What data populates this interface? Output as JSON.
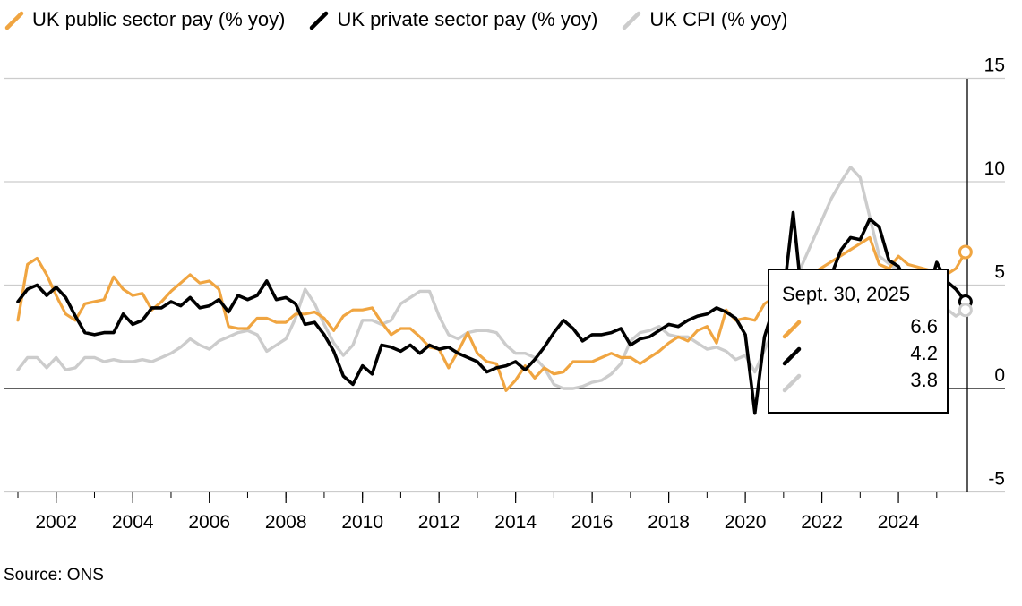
{
  "chart_data": {
    "type": "line",
    "title": "",
    "xlabel": "",
    "ylabel": "",
    "source": "Source: ONS",
    "x_ticks": [
      "2002",
      "2004",
      "2006",
      "2008",
      "2010",
      "2012",
      "2014",
      "2016",
      "2018",
      "2020",
      "2022",
      "2024"
    ],
    "y_ticks": [
      "15",
      "10",
      "5",
      "0",
      "-5"
    ],
    "xlim": [
      2001.0,
      2025.8
    ],
    "ylim": [
      -5,
      15
    ],
    "legend_position": "top",
    "grid": true,
    "series": [
      {
        "name": "UK public sector pay (% yoy)",
        "color": "#f0a541",
        "values": [
          [
            2001.0,
            3.3
          ],
          [
            2001.25,
            6.0
          ],
          [
            2001.5,
            6.3
          ],
          [
            2001.75,
            5.5
          ],
          [
            2002.0,
            4.5
          ],
          [
            2002.25,
            3.6
          ],
          [
            2002.5,
            3.3
          ],
          [
            2002.75,
            4.1
          ],
          [
            2003.0,
            4.2
          ],
          [
            2003.25,
            4.3
          ],
          [
            2003.5,
            5.4
          ],
          [
            2003.75,
            4.8
          ],
          [
            2004.0,
            4.5
          ],
          [
            2004.25,
            4.6
          ],
          [
            2004.5,
            3.8
          ],
          [
            2004.75,
            4.2
          ],
          [
            2005.0,
            4.7
          ],
          [
            2005.25,
            5.1
          ],
          [
            2005.5,
            5.5
          ],
          [
            2005.75,
            5.1
          ],
          [
            2006.0,
            5.2
          ],
          [
            2006.25,
            4.8
          ],
          [
            2006.5,
            3.0
          ],
          [
            2006.75,
            2.9
          ],
          [
            2007.0,
            2.9
          ],
          [
            2007.25,
            3.4
          ],
          [
            2007.5,
            3.4
          ],
          [
            2007.75,
            3.2
          ],
          [
            2008.0,
            3.2
          ],
          [
            2008.25,
            3.6
          ],
          [
            2008.5,
            3.6
          ],
          [
            2008.75,
            3.7
          ],
          [
            2009.0,
            3.4
          ],
          [
            2009.25,
            2.8
          ],
          [
            2009.5,
            3.5
          ],
          [
            2009.75,
            3.8
          ],
          [
            2010.0,
            3.8
          ],
          [
            2010.25,
            3.9
          ],
          [
            2010.5,
            3.2
          ],
          [
            2010.75,
            2.6
          ],
          [
            2011.0,
            2.9
          ],
          [
            2011.25,
            2.9
          ],
          [
            2011.5,
            2.5
          ],
          [
            2011.75,
            2.0
          ],
          [
            2012.0,
            1.9
          ],
          [
            2012.25,
            1.0
          ],
          [
            2012.5,
            1.8
          ],
          [
            2012.75,
            2.7
          ],
          [
            2013.0,
            1.7
          ],
          [
            2013.25,
            1.3
          ],
          [
            2013.5,
            1.2
          ],
          [
            2013.75,
            -0.1
          ],
          [
            2014.0,
            0.4
          ],
          [
            2014.25,
            1.1
          ],
          [
            2014.5,
            0.5
          ],
          [
            2014.75,
            1.0
          ],
          [
            2015.0,
            0.7
          ],
          [
            2015.25,
            0.8
          ],
          [
            2015.5,
            1.3
          ],
          [
            2015.75,
            1.3
          ],
          [
            2016.0,
            1.3
          ],
          [
            2016.25,
            1.5
          ],
          [
            2016.5,
            1.7
          ],
          [
            2016.75,
            1.5
          ],
          [
            2017.0,
            1.5
          ],
          [
            2017.25,
            1.2
          ],
          [
            2017.5,
            1.5
          ],
          [
            2017.75,
            1.8
          ],
          [
            2018.0,
            2.2
          ],
          [
            2018.25,
            2.5
          ],
          [
            2018.5,
            2.3
          ],
          [
            2018.75,
            2.8
          ],
          [
            2019.0,
            3.0
          ],
          [
            2019.25,
            2.2
          ],
          [
            2019.5,
            3.8
          ],
          [
            2019.75,
            3.3
          ],
          [
            2020.0,
            3.4
          ],
          [
            2020.25,
            3.3
          ],
          [
            2020.5,
            4.1
          ],
          [
            2023.25,
            7.3
          ],
          [
            2023.5,
            6.0
          ],
          [
            2023.75,
            5.8
          ],
          [
            2024.0,
            6.4
          ],
          [
            2024.25,
            6.0
          ],
          [
            2025.25,
            5.5
          ],
          [
            2025.5,
            5.8
          ],
          [
            2025.75,
            6.6
          ]
        ]
      },
      {
        "name": "UK private sector pay (% yoy)",
        "color": "#000000",
        "values": [
          [
            2001.0,
            4.2
          ],
          [
            2001.25,
            4.8
          ],
          [
            2001.5,
            5.0
          ],
          [
            2001.75,
            4.5
          ],
          [
            2002.0,
            4.9
          ],
          [
            2002.25,
            4.4
          ],
          [
            2002.5,
            3.5
          ],
          [
            2002.75,
            2.7
          ],
          [
            2003.0,
            2.6
          ],
          [
            2003.25,
            2.7
          ],
          [
            2003.5,
            2.7
          ],
          [
            2003.75,
            3.6
          ],
          [
            2004.0,
            3.1
          ],
          [
            2004.25,
            3.3
          ],
          [
            2004.5,
            3.9
          ],
          [
            2004.75,
            3.9
          ],
          [
            2005.0,
            4.2
          ],
          [
            2005.25,
            4.0
          ],
          [
            2005.5,
            4.4
          ],
          [
            2005.75,
            3.9
          ],
          [
            2006.0,
            4.0
          ],
          [
            2006.25,
            4.3
          ],
          [
            2006.5,
            3.7
          ],
          [
            2006.75,
            4.5
          ],
          [
            2007.0,
            4.3
          ],
          [
            2007.25,
            4.5
          ],
          [
            2007.5,
            5.2
          ],
          [
            2007.75,
            4.3
          ],
          [
            2008.0,
            4.4
          ],
          [
            2008.25,
            4.1
          ],
          [
            2008.5,
            3.1
          ],
          [
            2008.75,
            3.2
          ],
          [
            2009.0,
            2.6
          ],
          [
            2009.25,
            1.8
          ],
          [
            2009.5,
            0.6
          ],
          [
            2009.75,
            0.2
          ],
          [
            2010.0,
            1.1
          ],
          [
            2010.25,
            0.7
          ],
          [
            2010.5,
            2.1
          ],
          [
            2010.75,
            2.0
          ],
          [
            2011.0,
            1.8
          ],
          [
            2011.25,
            2.1
          ],
          [
            2011.5,
            1.7
          ],
          [
            2011.75,
            2.1
          ],
          [
            2012.0,
            1.9
          ],
          [
            2012.25,
            2.0
          ],
          [
            2012.5,
            1.7
          ],
          [
            2012.75,
            1.5
          ],
          [
            2013.0,
            1.3
          ],
          [
            2013.25,
            0.8
          ],
          [
            2013.5,
            1.0
          ],
          [
            2013.75,
            1.1
          ],
          [
            2014.0,
            1.3
          ],
          [
            2014.25,
            0.9
          ],
          [
            2014.5,
            1.4
          ],
          [
            2014.75,
            2.0
          ],
          [
            2015.0,
            2.7
          ],
          [
            2015.25,
            3.3
          ],
          [
            2015.5,
            2.9
          ],
          [
            2015.75,
            2.3
          ],
          [
            2016.0,
            2.6
          ],
          [
            2016.25,
            2.6
          ],
          [
            2016.5,
            2.7
          ],
          [
            2016.75,
            2.9
          ],
          [
            2017.0,
            2.1
          ],
          [
            2017.25,
            2.4
          ],
          [
            2017.5,
            2.5
          ],
          [
            2017.75,
            2.8
          ],
          [
            2018.0,
            3.1
          ],
          [
            2018.25,
            3.0
          ],
          [
            2018.5,
            3.3
          ],
          [
            2018.75,
            3.5
          ],
          [
            2019.0,
            3.6
          ],
          [
            2019.25,
            3.9
          ],
          [
            2019.5,
            3.7
          ],
          [
            2019.75,
            3.4
          ],
          [
            2020.0,
            2.6
          ],
          [
            2020.25,
            -1.2
          ],
          [
            2020.5,
            2.5
          ],
          [
            2020.75,
            4.0
          ],
          [
            2021.0,
            4.5
          ],
          [
            2021.25,
            8.5
          ],
          [
            2021.5,
            4.0
          ],
          [
            2021.75,
            5.0
          ],
          [
            2022.0,
            4.8
          ],
          [
            2022.25,
            5.5
          ],
          [
            2022.5,
            6.7
          ],
          [
            2022.75,
            7.3
          ],
          [
            2023.0,
            7.2
          ],
          [
            2023.25,
            8.2
          ],
          [
            2023.5,
            7.8
          ],
          [
            2023.75,
            6.2
          ],
          [
            2024.0,
            5.9
          ],
          [
            2024.25,
            5.0
          ],
          [
            2024.5,
            5.0
          ],
          [
            2024.75,
            4.5
          ],
          [
            2025.0,
            6.1
          ],
          [
            2025.25,
            5.2
          ],
          [
            2025.5,
            4.8
          ],
          [
            2025.75,
            4.2
          ]
        ]
      },
      {
        "name": "UK CPI (% yoy)",
        "color": "#cccccc",
        "values": [
          [
            2001.0,
            0.9
          ],
          [
            2001.25,
            1.5
          ],
          [
            2001.5,
            1.5
          ],
          [
            2001.75,
            1.0
          ],
          [
            2002.0,
            1.5
          ],
          [
            2002.25,
            0.9
          ],
          [
            2002.5,
            1.0
          ],
          [
            2002.75,
            1.5
          ],
          [
            2003.0,
            1.5
          ],
          [
            2003.25,
            1.3
          ],
          [
            2003.5,
            1.4
          ],
          [
            2003.75,
            1.3
          ],
          [
            2004.0,
            1.3
          ],
          [
            2004.25,
            1.4
          ],
          [
            2004.5,
            1.3
          ],
          [
            2004.75,
            1.5
          ],
          [
            2005.0,
            1.7
          ],
          [
            2005.25,
            2.0
          ],
          [
            2005.5,
            2.4
          ],
          [
            2005.75,
            2.1
          ],
          [
            2006.0,
            1.9
          ],
          [
            2006.25,
            2.3
          ],
          [
            2006.5,
            2.5
          ],
          [
            2006.75,
            2.7
          ],
          [
            2007.0,
            2.8
          ],
          [
            2007.25,
            2.6
          ],
          [
            2007.5,
            1.8
          ],
          [
            2007.75,
            2.1
          ],
          [
            2008.0,
            2.4
          ],
          [
            2008.25,
            3.4
          ],
          [
            2008.5,
            4.8
          ],
          [
            2008.75,
            4.1
          ],
          [
            2009.0,
            3.1
          ],
          [
            2009.25,
            2.2
          ],
          [
            2009.5,
            1.6
          ],
          [
            2009.75,
            2.1
          ],
          [
            2010.0,
            3.3
          ],
          [
            2010.25,
            3.3
          ],
          [
            2010.5,
            3.1
          ],
          [
            2010.75,
            3.3
          ],
          [
            2011.0,
            4.1
          ],
          [
            2011.25,
            4.4
          ],
          [
            2011.5,
            4.7
          ],
          [
            2011.75,
            4.7
          ],
          [
            2012.0,
            3.5
          ],
          [
            2012.25,
            2.6
          ],
          [
            2012.5,
            2.4
          ],
          [
            2012.75,
            2.7
          ],
          [
            2013.0,
            2.8
          ],
          [
            2013.25,
            2.8
          ],
          [
            2013.5,
            2.7
          ],
          [
            2013.75,
            2.1
          ],
          [
            2014.0,
            1.7
          ],
          [
            2014.25,
            1.7
          ],
          [
            2014.5,
            1.5
          ],
          [
            2014.75,
            1.0
          ],
          [
            2015.0,
            0.2
          ],
          [
            2015.25,
            0.0
          ],
          [
            2015.5,
            0.0
          ],
          [
            2015.75,
            0.1
          ],
          [
            2016.0,
            0.3
          ],
          [
            2016.25,
            0.4
          ],
          [
            2016.5,
            0.7
          ],
          [
            2016.75,
            1.2
          ],
          [
            2017.0,
            2.3
          ],
          [
            2017.25,
            2.7
          ],
          [
            2017.5,
            2.8
          ],
          [
            2017.75,
            3.0
          ],
          [
            2018.0,
            2.6
          ],
          [
            2018.25,
            2.5
          ],
          [
            2018.5,
            2.5
          ],
          [
            2018.75,
            2.2
          ],
          [
            2019.0,
            1.9
          ],
          [
            2019.25,
            2.0
          ],
          [
            2019.5,
            1.8
          ],
          [
            2019.75,
            1.4
          ],
          [
            2020.0,
            1.6
          ],
          [
            2020.25,
            0.8
          ],
          [
            2022.25,
            9.2
          ],
          [
            2022.5,
            10.0
          ],
          [
            2022.75,
            10.7
          ],
          [
            2023.0,
            10.2
          ],
          [
            2023.25,
            8.3
          ],
          [
            2023.5,
            6.4
          ],
          [
            2025.5,
            3.5
          ],
          [
            2025.75,
            3.8
          ]
        ]
      }
    ]
  },
  "tooltip": {
    "date": "Sept. 30, 2025",
    "values": [
      "6.6",
      "4.2",
      "3.8"
    ]
  }
}
